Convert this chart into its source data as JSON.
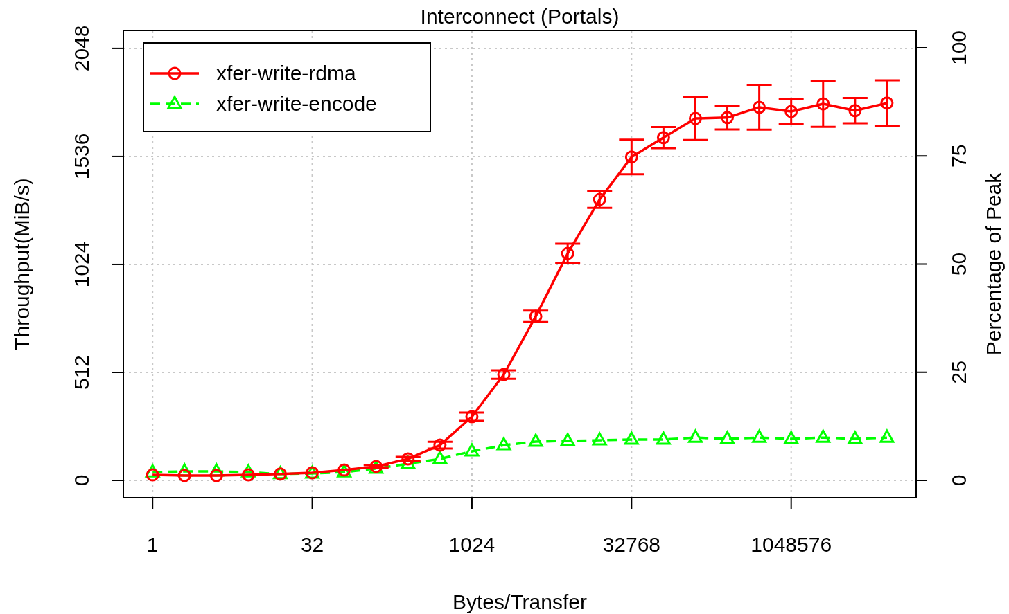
{
  "chart_data": {
    "type": "line",
    "title": "Interconnect (Portals)",
    "xlabel": "Bytes/Transfer",
    "ylabel": "Throughput(MiB/s)",
    "y2label": "Percentage of Peak",
    "log": "x",
    "xlim": [
      0.53,
      15800000
    ],
    "xticks": [
      1,
      32,
      1024,
      32768,
      1048576
    ],
    "ylim": [
      -82,
      2133
    ],
    "yticks": [
      0,
      512,
      1024,
      1536,
      2048
    ],
    "y2lim": [
      -4,
      104
    ],
    "y2ticks": [
      0,
      25,
      50,
      75,
      100
    ],
    "grid": true,
    "legend": "top left",
    "x": [
      1,
      2,
      4,
      8,
      16,
      32,
      64,
      128,
      256,
      512,
      1024,
      2048,
      4096,
      8192,
      16384,
      32768,
      65536,
      131072,
      262144,
      524288,
      1048576,
      2097152,
      4194304,
      8388608
    ],
    "series": [
      {
        "name": "xfer-write-rdma",
        "color": "#ff0000",
        "marker": "circle",
        "line_style": "solid",
        "values": [
          26,
          23,
          23,
          26,
          30,
          36,
          49,
          66,
          102,
          167,
          302,
          502,
          778,
          1076,
          1332,
          1533,
          1625,
          1716,
          1720,
          1769,
          1749,
          1785,
          1753,
          1789
        ],
        "errors": [
          null,
          null,
          null,
          null,
          null,
          null,
          null,
          6,
          10,
          16,
          20,
          20,
          27,
          46,
          40,
          82,
          50,
          102,
          56,
          106,
          59,
          109,
          60,
          108
        ]
      },
      {
        "name": "xfer-write-encode",
        "color": "#00ff00",
        "marker": "triangle",
        "line_style": "dashed",
        "values": [
          39,
          43,
          43,
          39,
          30,
          33,
          39,
          56,
          79,
          102,
          138,
          167,
          184,
          187,
          190,
          194,
          194,
          203,
          197,
          203,
          197,
          203,
          197,
          203
        ]
      }
    ]
  }
}
